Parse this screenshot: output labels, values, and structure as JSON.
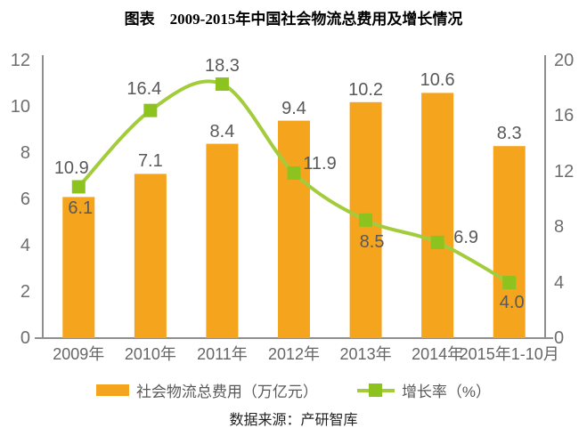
{
  "title": "图表　2009-2015年中国社会物流总费用及增长情况",
  "source": "数据来源：产研智库",
  "colors": {
    "bar": "#F5A41E",
    "line": "#A3CC3D",
    "marker": "#8DC31F",
    "axis": "#8F8F8F",
    "tick_label": "#6E6E6E",
    "data_label": "#595959",
    "background": "#FFFFFF"
  },
  "chart_data": {
    "type": "combo-bar-line",
    "title": "图表　2009-2015年中国社会物流总费用及增长情况",
    "categories": [
      "2009年",
      "2010年",
      "2011年",
      "2012年",
      "2013年",
      "2014年",
      "2015年1-10月"
    ],
    "series": [
      {
        "name": "社会物流总费用（万亿元）",
        "type": "bar",
        "axis": "left",
        "values": [
          6.1,
          7.1,
          8.4,
          9.4,
          10.2,
          10.6,
          8.3
        ]
      },
      {
        "name": "增长率（%）",
        "type": "line",
        "axis": "right",
        "values": [
          10.9,
          16.4,
          18.3,
          11.9,
          8.5,
          6.9,
          4.0
        ]
      }
    ],
    "left_axis": {
      "range": [
        0,
        12
      ],
      "ticks": [
        0,
        2,
        4,
        6,
        8,
        10,
        12
      ]
    },
    "right_axis": {
      "range": [
        0,
        20
      ],
      "ticks": [
        0,
        4,
        8,
        12,
        16,
        20
      ]
    },
    "grid": false,
    "legend_position": "bottom"
  }
}
